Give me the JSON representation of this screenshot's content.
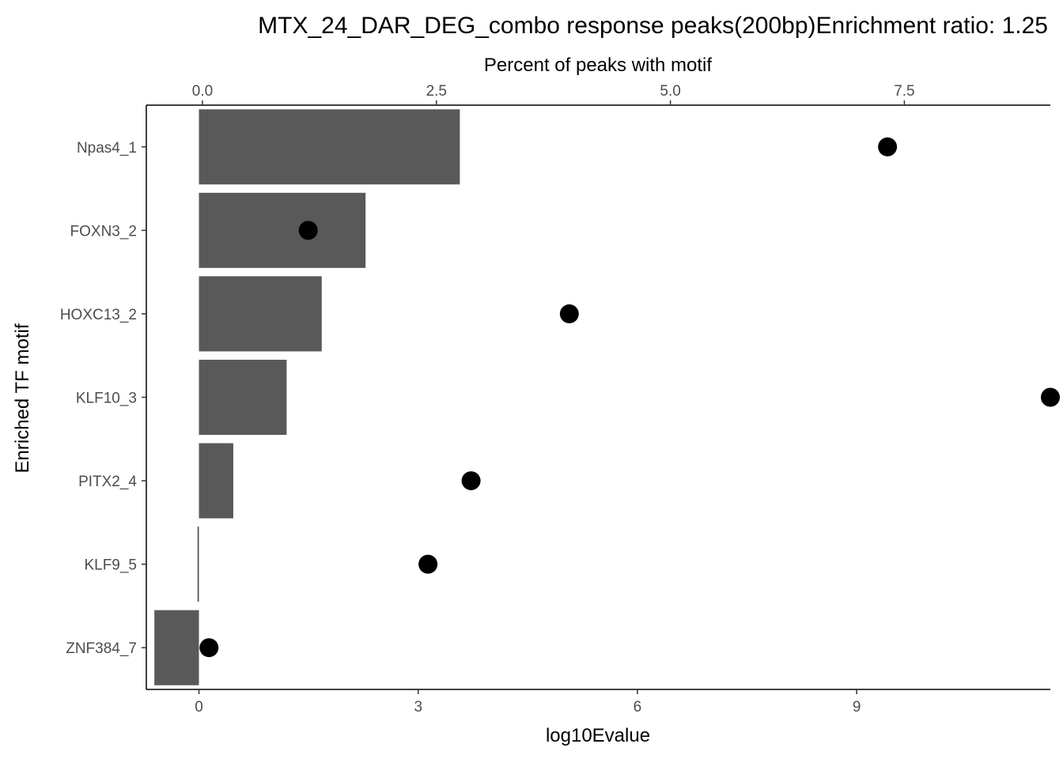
{
  "chart_data": {
    "type": "bar",
    "title": "MTX_24_DAR_DEG_combo response peaks(200bp)Enrichment ratio: 1.25",
    "xlabel_bottom": "log10Evalue",
    "xlabel_top": "Percent of peaks with motif",
    "ylabel": "Enriched TF motif",
    "categories": [
      "Npas4_1",
      "FOXN3_2",
      "HOXC13_2",
      "KLF10_3",
      "PITX2_4",
      "KLF9_5",
      "ZNF384_7"
    ],
    "bar_values_log10Evalue": [
      3.57,
      2.28,
      1.68,
      1.2,
      0.47,
      -0.02,
      -0.61
    ],
    "point_values_percent": [
      7.32,
      1.13,
      3.92,
      9.06,
      2.87,
      2.41,
      0.07
    ],
    "xlim_bottom": [
      -0.72,
      11.65
    ],
    "xlim_top": [
      -0.6,
      9.06
    ],
    "xticks_bottom": [
      0,
      3,
      6,
      9
    ],
    "xticks_top": [
      0.0,
      2.5,
      5.0,
      7.5
    ],
    "xtick_labels_bottom": [
      "0",
      "3",
      "6",
      "9"
    ],
    "xtick_labels_top": [
      "0.0",
      "2.5",
      "5.0",
      "7.5"
    ],
    "grid": false,
    "colors": {
      "bar": "#595959",
      "point": "#000000",
      "axis": "#000000",
      "tick_text": "#4d4d4d"
    }
  }
}
